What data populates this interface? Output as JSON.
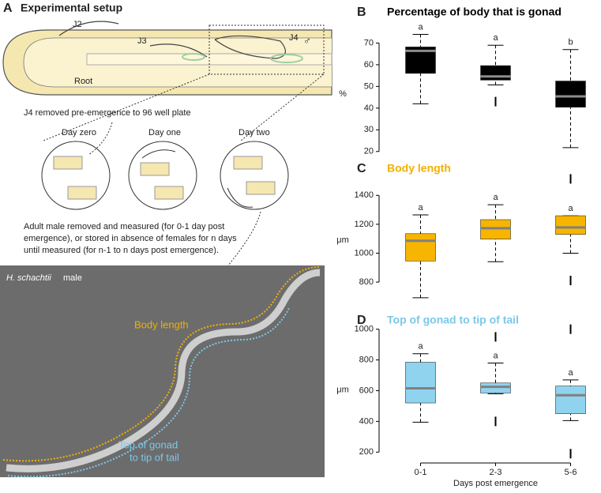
{
  "panel_a": {
    "label": "A",
    "title": "Experimental setup",
    "stages": [
      "J2",
      "J3",
      "J4"
    ],
    "male_symbol": "♂",
    "root": "Root",
    "caption": "J4 removed pre-emergence to 96 well plate",
    "days": [
      "Day zero",
      "Day one",
      "Day two"
    ],
    "note_lines": [
      "Adult male removed and measured (for 0-1 day post",
      "emergence), or stored in absence of females for n days",
      "until measured (for n-1 to n days post emergence)."
    ],
    "photo_species": "H. schachtii",
    "photo_sex": "male",
    "body_length": "Body length",
    "gonad_lines": [
      "Top of gonad",
      "to tip of tail"
    ]
  },
  "chart_data": [
    {
      "type": "box",
      "panel": "B",
      "title": "Percentage of body that is gonad",
      "ylabel": "%",
      "color": "#000000",
      "median_color": "#8c8c8c",
      "title_color": "#000000",
      "ylim": [
        17,
        76
      ],
      "yticks": [
        20,
        30,
        40,
        50,
        60,
        70
      ],
      "letters": [
        "a",
        "a",
        "b"
      ],
      "boxes": [
        {
          "whislo": 42,
          "q1": 56,
          "med": 66.4,
          "q3": 68.2,
          "whishi": 74,
          "fliers": []
        },
        {
          "whislo": 50.7,
          "q1": 52.9,
          "med": 54.6,
          "q3": 59.6,
          "whishi": 69,
          "fliers": [
            43
          ]
        },
        {
          "whislo": 21.8,
          "q1": 40.4,
          "med": 45.4,
          "q3": 52.5,
          "whishi": 67,
          "fliers": []
        }
      ]
    },
    {
      "type": "box",
      "panel": "C",
      "title": "Body length",
      "ylabel": "μm",
      "color": "#f7b500",
      "median_color": "#808080",
      "title_color": "#f0b000",
      "ylim": [
        620,
        1560
      ],
      "yticks": [
        800,
        1000,
        1200,
        1400
      ],
      "letters": [
        "a",
        "a",
        "a"
      ],
      "boxes": [
        {
          "whislo": 692,
          "q1": 946,
          "med": 1086,
          "q3": 1135,
          "whishi": 1265,
          "fliers": []
        },
        {
          "whislo": 941,
          "q1": 1097,
          "med": 1173,
          "q3": 1232,
          "whishi": 1335,
          "fliers": []
        },
        {
          "whislo": 1000,
          "q1": 1130,
          "med": 1178,
          "q3": 1259,
          "whishi": 1259,
          "fliers": [
            1514,
            811
          ]
        }
      ]
    },
    {
      "type": "box",
      "panel": "D",
      "title": "Top of gonad to tip of tail",
      "ylabel": "μm",
      "color": "#8fd3ef",
      "median_color": "#808080",
      "title_color": "#7cc8e8",
      "ylim": [
        150,
        1060
      ],
      "yticks": [
        200,
        400,
        600,
        800,
        1000
      ],
      "letters": [
        "a",
        "a",
        "a"
      ],
      "categories": [
        "0-1",
        "2-3",
        "5-6"
      ],
      "xlabel": "Days post emergence",
      "boxes": [
        {
          "whislo": 395,
          "q1": 520,
          "med": 615,
          "q3": 785,
          "whishi": 840,
          "fliers": []
        },
        {
          "whislo": 580,
          "q1": 585,
          "med": 625,
          "q3": 650,
          "whishi": 780,
          "fliers": [
            950,
            400
          ]
        },
        {
          "whislo": 405,
          "q1": 450,
          "med": 570,
          "q3": 630,
          "whishi": 670,
          "fliers": [
            1000,
            190
          ]
        }
      ]
    }
  ]
}
